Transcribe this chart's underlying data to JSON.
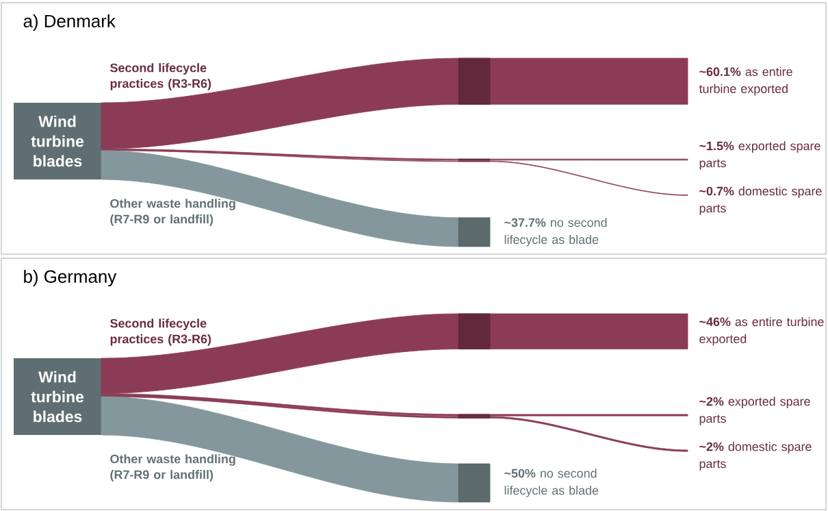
{
  "chart_data": [
    {
      "type": "other",
      "title": "a) Denmark",
      "categories": [
        "as entire turbine exported",
        "exported spare parts",
        "domestic spare parts",
        "no second lifecycle as blade"
      ],
      "values": [
        60.1,
        1.5,
        0.7,
        37.7
      ],
      "value_labels": [
        "~60.1%",
        "~1.5%",
        "~0.7%",
        "~37.7%"
      ],
      "colors": [
        "#8c3b56",
        "#8c3b56",
        "#8c3b56",
        "#83979c"
      ],
      "annotations": [
        "Wind turbine blades",
        "Second lifecycle practices (R3-R6)",
        "Other waste handling (R7-R9 or landfill)"
      ]
    },
    {
      "type": "other",
      "title": "b) Germany",
      "categories": [
        "as entire turbine exported",
        "exported spare parts",
        "domestic spare parts",
        "no second lifecycle as blade"
      ],
      "values": [
        46,
        2,
        2,
        50
      ],
      "value_labels": [
        "~46%",
        "~2%",
        "~2%",
        "~50%"
      ],
      "colors": [
        "#8c3b56",
        "#8c3b56",
        "#8c3b56",
        "#83979c"
      ],
      "annotations": [
        "Wind turbine blades",
        "Second lifecycle practices (R3-R6)",
        "Other waste handling (R7-R9 or landfill)"
      ]
    }
  ]
}
